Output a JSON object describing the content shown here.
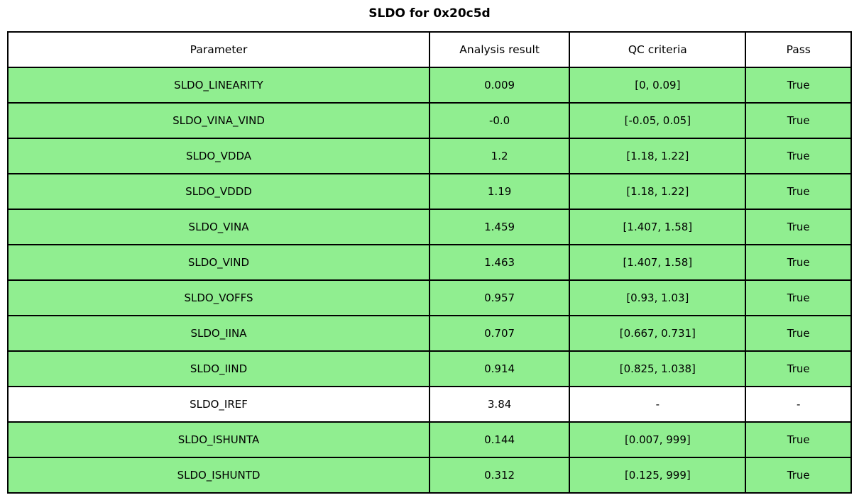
{
  "title": "SLDO for 0x20c5d",
  "colors": {
    "pass_row_bg": "#90EE90",
    "neutral_row_bg": "#FFFFFF",
    "border": "#000000",
    "text": "#000000",
    "background": "#FFFFFF"
  },
  "chart_data": {
    "type": "table",
    "title": "SLDO for 0x20c5d",
    "columns": [
      "Parameter",
      "Analysis result",
      "QC criteria",
      "Pass"
    ],
    "rows": [
      {
        "cells": [
          "SLDO_LINEARITY",
          "0.009",
          "[0, 0.09]",
          "True"
        ],
        "highlight": true
      },
      {
        "cells": [
          "SLDO_VINA_VIND",
          "-0.0",
          "[-0.05, 0.05]",
          "True"
        ],
        "highlight": true
      },
      {
        "cells": [
          "SLDO_VDDA",
          "1.2",
          "[1.18, 1.22]",
          "True"
        ],
        "highlight": true
      },
      {
        "cells": [
          "SLDO_VDDD",
          "1.19",
          "[1.18, 1.22]",
          "True"
        ],
        "highlight": true
      },
      {
        "cells": [
          "SLDO_VINA",
          "1.459",
          "[1.407, 1.58]",
          "True"
        ],
        "highlight": true
      },
      {
        "cells": [
          "SLDO_VIND",
          "1.463",
          "[1.407, 1.58]",
          "True"
        ],
        "highlight": true
      },
      {
        "cells": [
          "SLDO_VOFFS",
          "0.957",
          "[0.93, 1.03]",
          "True"
        ],
        "highlight": true
      },
      {
        "cells": [
          "SLDO_IINA",
          "0.707",
          "[0.667, 0.731]",
          "True"
        ],
        "highlight": true
      },
      {
        "cells": [
          "SLDO_IIND",
          "0.914",
          "[0.825, 1.038]",
          "True"
        ],
        "highlight": true
      },
      {
        "cells": [
          "SLDO_IREF",
          "3.84",
          "-",
          "-"
        ],
        "highlight": false
      },
      {
        "cells": [
          "SLDO_ISHUNTA",
          "0.144",
          "[0.007, 999]",
          "True"
        ],
        "highlight": true
      },
      {
        "cells": [
          "SLDO_ISHUNTD",
          "0.312",
          "[0.125, 999]",
          "True"
        ],
        "highlight": true
      }
    ],
    "legend_position": "none",
    "grid": "full-cell-borders"
  }
}
